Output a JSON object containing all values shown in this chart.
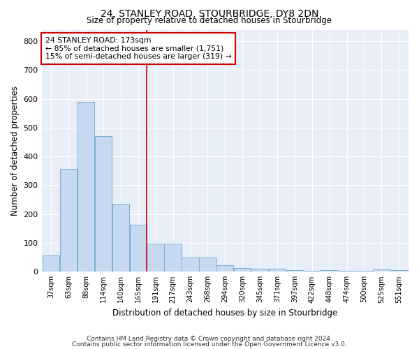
{
  "title": "24, STANLEY ROAD, STOURBRIDGE, DY8 2DN",
  "subtitle": "Size of property relative to detached houses in Stourbridge",
  "xlabel": "Distribution of detached houses by size in Stourbridge",
  "ylabel": "Number of detached properties",
  "bar_labels": [
    "37sqm",
    "63sqm",
    "88sqm",
    "114sqm",
    "140sqm",
    "165sqm",
    "191sqm",
    "217sqm",
    "243sqm",
    "268sqm",
    "294sqm",
    "320sqm",
    "345sqm",
    "371sqm",
    "397sqm",
    "422sqm",
    "448sqm",
    "474sqm",
    "500sqm",
    "525sqm",
    "551sqm"
  ],
  "bar_values": [
    57,
    357,
    590,
    470,
    235,
    163,
    97,
    97,
    48,
    48,
    22,
    14,
    10,
    10,
    5,
    2,
    5,
    2,
    2,
    8,
    5
  ],
  "bar_color": "#c6d9f0",
  "bar_edge_color": "#7bafd4",
  "bg_color": "#e8eef7",
  "grid_color": "#ffffff",
  "annotation_text": "24 STANLEY ROAD: 173sqm\n← 85% of detached houses are smaller (1,751)\n15% of semi-detached houses are larger (319) →",
  "annotation_box_color": "#ffffff",
  "annotation_box_edge": "#cc0000",
  "vline_x": 5.5,
  "ylim": [
    0,
    840
  ],
  "yticks": [
    0,
    100,
    200,
    300,
    400,
    500,
    600,
    700,
    800
  ],
  "footnote1": "Contains HM Land Registry data © Crown copyright and database right 2024.",
  "footnote2": "Contains public sector information licensed under the Open Government Licence v3.0."
}
